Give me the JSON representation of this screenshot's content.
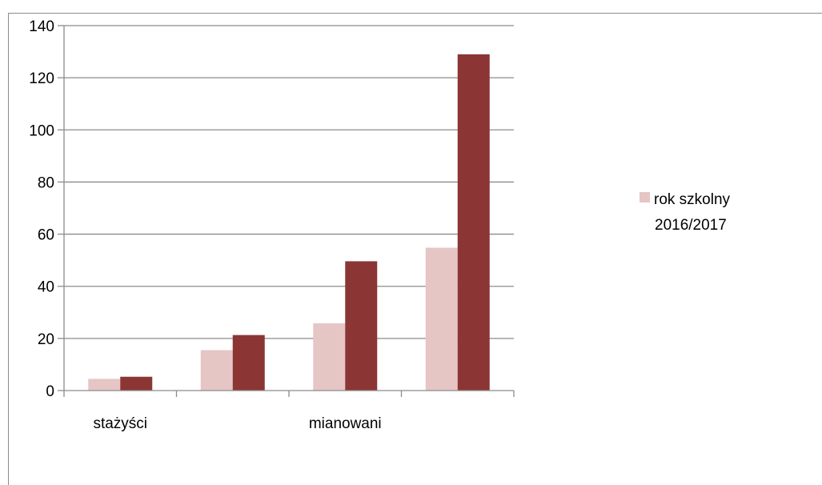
{
  "chart_data": {
    "type": "bar",
    "categories": [
      "stażyści",
      "",
      "mianowani",
      ""
    ],
    "category_labels_shown": [
      "stażyści",
      "mianowani"
    ],
    "series": [
      {
        "name": "rok szkolny 2016/2017",
        "color": "#e6c5c5",
        "values": [
          4.5,
          15.5,
          25.8,
          54.8
        ]
      },
      {
        "name": "",
        "color": "#8b3535",
        "values": [
          5.3,
          21.3,
          49.6,
          129
        ]
      }
    ],
    "yticks": [
      0,
      20,
      40,
      60,
      80,
      100,
      120,
      140
    ],
    "ylim": [
      0,
      140
    ],
    "grid": true,
    "legend": {
      "position": "right",
      "lines": [
        "rok szkolny",
        "2016/2017"
      ]
    },
    "title": "",
    "xlabel": "",
    "ylabel": ""
  }
}
